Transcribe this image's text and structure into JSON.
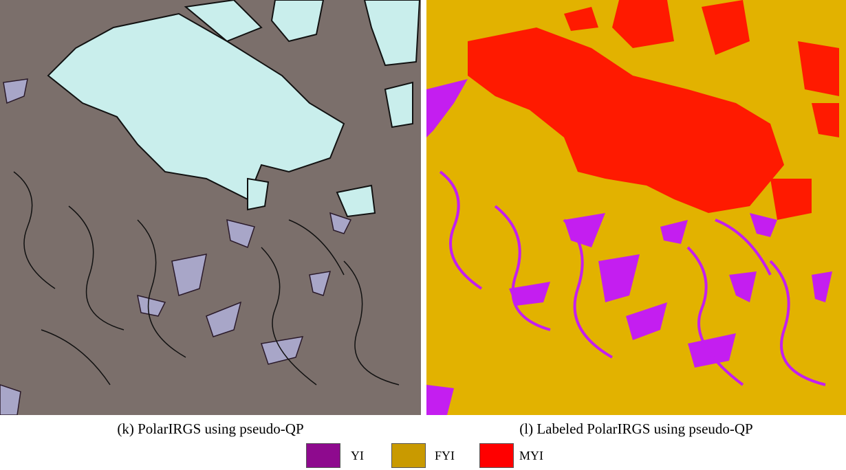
{
  "figure": {
    "panels": [
      {
        "caption": "(k) PolarIRGS using pseudo-QP"
      },
      {
        "caption": "(l) Labeled PolarIRGS using pseudo-QP"
      }
    ],
    "legend": [
      {
        "label": "YI",
        "color": "#8e0a8e"
      },
      {
        "label": "FYI",
        "color": "#c99a00"
      },
      {
        "label": "MYI",
        "color": "#ff0000"
      }
    ]
  }
}
